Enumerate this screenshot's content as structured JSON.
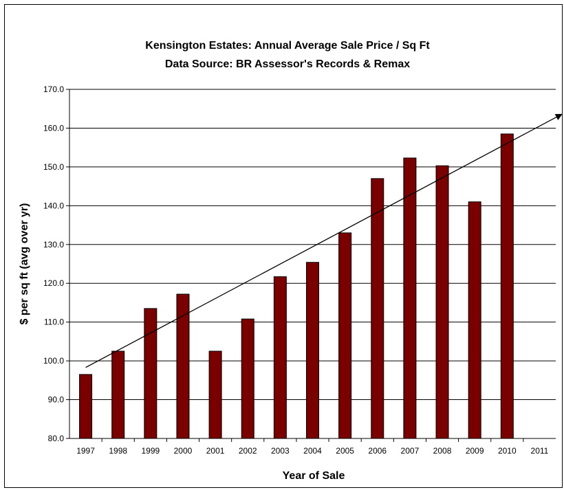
{
  "chart_data": {
    "type": "bar",
    "title": "Kensington Estates:  Annual Average Sale Price / Sq Ft",
    "subtitle": "Data Source:  BR Assessor's Records & Remax",
    "xlabel": "Year of Sale",
    "ylabel": "$ per sq ft (avg over yr)",
    "categories": [
      "1997",
      "1998",
      "1999",
      "2000",
      "2001",
      "2002",
      "2003",
      "2004",
      "2005",
      "2006",
      "2007",
      "2008",
      "2009",
      "2010",
      "2011"
    ],
    "values": [
      96.5,
      102.5,
      113.5,
      117.2,
      102.5,
      110.8,
      121.7,
      125.4,
      133.0,
      147.0,
      152.3,
      150.3,
      141.0,
      158.5,
      null
    ],
    "ylim": [
      80,
      170
    ],
    "yticks": [
      "80.0",
      "90.0",
      "100.0",
      "110.0",
      "120.0",
      "130.0",
      "140.0",
      "150.0",
      "160.0",
      "170.0"
    ],
    "grid": "horizontal",
    "trendline": {
      "type": "linear arrow",
      "start": {
        "x": "1997",
        "y": 98.3
      },
      "end": {
        "x": "2011+",
        "y": 163.5
      }
    },
    "colors": {
      "bar": "#7a0000",
      "bar_edge": "#000000",
      "grid": "#000000",
      "trendline": "#000000"
    }
  }
}
